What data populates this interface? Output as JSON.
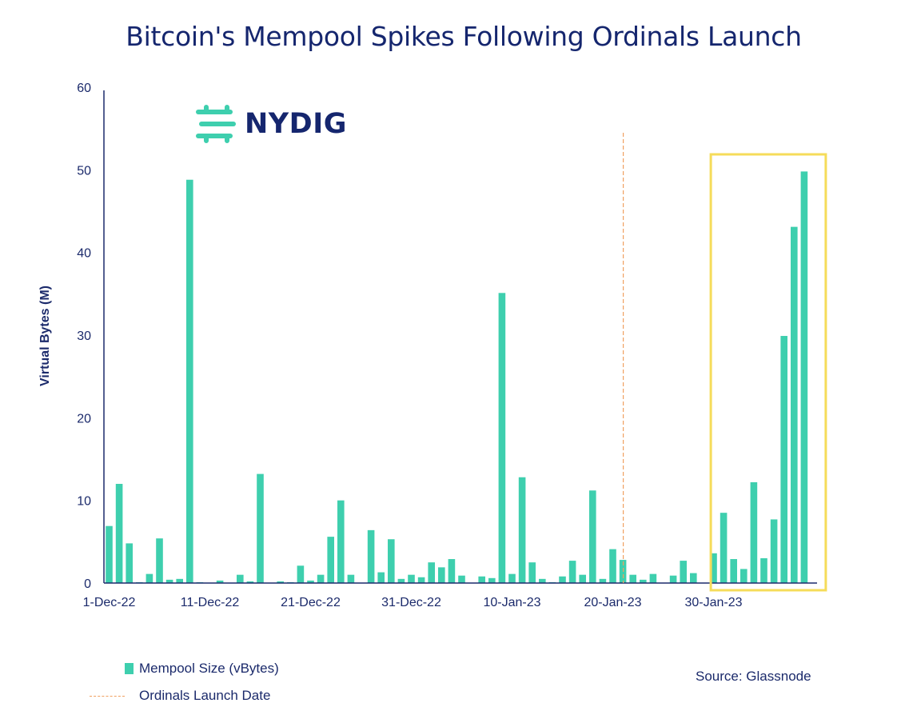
{
  "logo": {
    "text": "NYDIG",
    "icon": "nydig-logo-icon",
    "color": "#3ecfae"
  },
  "source": "Source: Glassnode",
  "legend": {
    "bars_label": "Mempool Size (vBytes)",
    "line_label": "Ordinals Launch Date"
  },
  "chart_data": {
    "type": "bar",
    "title": "Bitcoin's Mempool Spikes Following Ordinals Launch",
    "xlabel": "",
    "ylabel": "Virtual Bytes (M)",
    "ylim": [
      0,
      60
    ],
    "yticks": [
      0,
      10,
      20,
      30,
      40,
      50,
      60
    ],
    "x_tick_labels": [
      "1-Dec-22",
      "11-Dec-22",
      "21-Dec-22",
      "31-Dec-22",
      "10-Jan-23",
      "20-Jan-23",
      "30-Jan-23"
    ],
    "grid": false,
    "bar_color": "#3ecfae",
    "series": [
      {
        "name": "Mempool Size (vBytes)",
        "x": [
          "2022-12-01",
          "2022-12-02",
          "2022-12-03",
          "2022-12-04",
          "2022-12-05",
          "2022-12-06",
          "2022-12-07",
          "2022-12-08",
          "2022-12-09",
          "2022-12-10",
          "2022-12-11",
          "2022-12-12",
          "2022-12-13",
          "2022-12-14",
          "2022-12-15",
          "2022-12-16",
          "2022-12-17",
          "2022-12-18",
          "2022-12-19",
          "2022-12-20",
          "2022-12-21",
          "2022-12-22",
          "2022-12-23",
          "2022-12-24",
          "2022-12-25",
          "2022-12-26",
          "2022-12-27",
          "2022-12-28",
          "2022-12-29",
          "2022-12-30",
          "2022-12-31",
          "2023-01-01",
          "2023-01-02",
          "2023-01-03",
          "2023-01-04",
          "2023-01-05",
          "2023-01-06",
          "2023-01-07",
          "2023-01-08",
          "2023-01-09",
          "2023-01-10",
          "2023-01-11",
          "2023-01-12",
          "2023-01-13",
          "2023-01-14",
          "2023-01-15",
          "2023-01-16",
          "2023-01-17",
          "2023-01-18",
          "2023-01-19",
          "2023-01-20",
          "2023-01-21",
          "2023-01-22",
          "2023-01-23",
          "2023-01-24",
          "2023-01-25",
          "2023-01-26",
          "2023-01-27",
          "2023-01-28",
          "2023-01-29",
          "2023-01-30",
          "2023-01-31",
          "2023-02-01",
          "2023-02-02",
          "2023-02-03",
          "2023-02-04",
          "2023-02-05",
          "2023-02-06",
          "2023-02-07",
          "2023-02-08"
        ],
        "values": [
          6.9,
          12.0,
          4.8,
          0.1,
          1.1,
          5.4,
          0.4,
          0.5,
          48.8,
          0.1,
          0.0,
          0.3,
          0.0,
          1.0,
          0.2,
          13.2,
          0.0,
          0.2,
          0.1,
          2.1,
          0.3,
          1.0,
          5.6,
          10.0,
          1.0,
          0.0,
          6.4,
          1.3,
          5.3,
          0.5,
          1.0,
          0.7,
          2.5,
          1.9,
          2.9,
          0.9,
          0.0,
          0.8,
          0.6,
          35.1,
          1.1,
          12.8,
          2.5,
          0.5,
          0.1,
          0.8,
          2.7,
          1.0,
          11.2,
          0.5,
          4.1,
          2.8,
          1.0,
          0.4,
          1.1,
          0.0,
          0.9,
          2.7,
          1.2,
          0.0,
          3.6,
          8.5,
          2.9,
          1.7,
          12.2,
          3.0,
          7.7,
          29.9,
          43.1,
          49.8
        ]
      }
    ],
    "annotations": [
      {
        "type": "vline",
        "x": "2023-01-21",
        "label": "Ordinals Launch Date",
        "color": "#f0a060",
        "style": "dashed"
      },
      {
        "type": "highlight-box",
        "x_range": [
          "2023-01-31",
          "2023-02-08"
        ],
        "color": "#f5dc5a"
      }
    ]
  }
}
